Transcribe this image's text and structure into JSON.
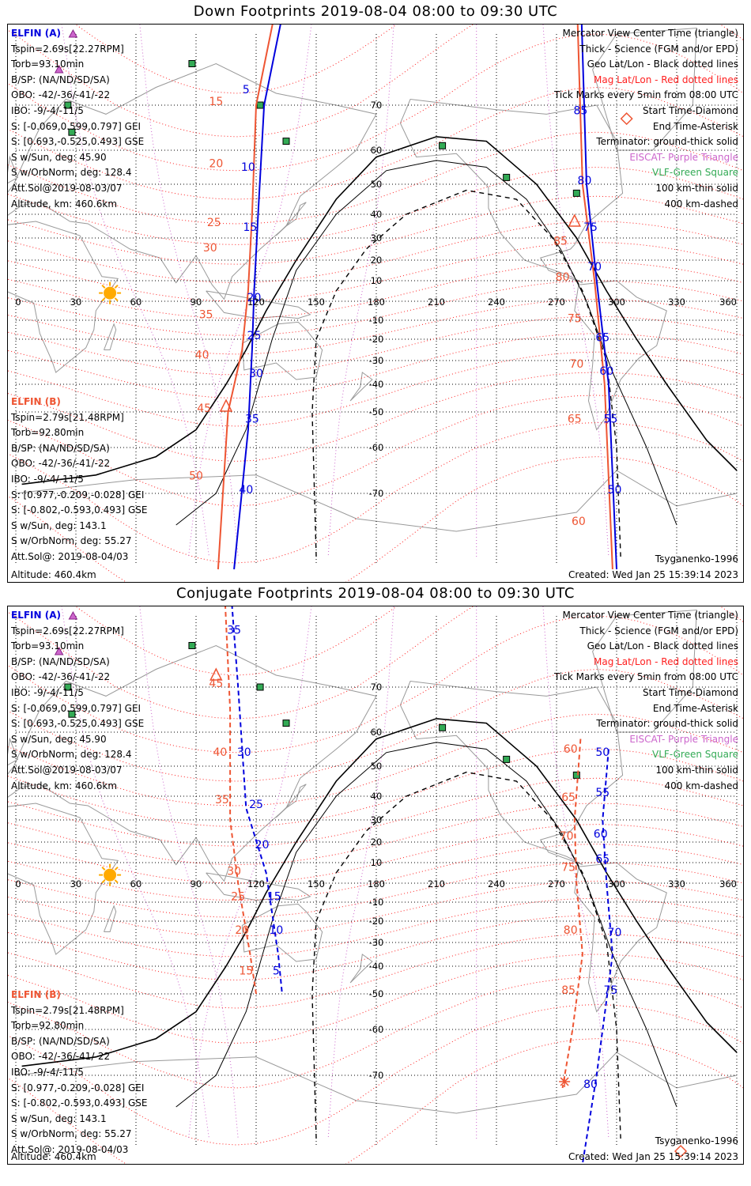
{
  "colors": {
    "elfin_a": "#0000dd",
    "elfin_b": "#ee5533",
    "mag_grid": "#ff2020",
    "geo_grid": "#000000",
    "eiscat": "#cc66cc",
    "vlf": "#33aa55",
    "sun": "#ffaa00",
    "coast": "#999999"
  },
  "panels": [
    {
      "title": "Down Footprints 2019-08-04 08:00 to 09:30 UTC",
      "elfin_a": {
        "header": "ELFIN (A)",
        "lines": [
          "Tspin=2.69s[22.27RPM]",
          "Torb=93.10min",
          "B/SP: (NA/ND/SD/SA)",
          "OBO: -42/-36/-41/-22",
          "IBO: -9/-4/-11/5",
          "S: [-0.069,0.599,0.797] GEI",
          "S: [0.693,-0.525,0.493] GSE",
          "S w/Sun, deg: 45.90",
          "S w/OrbNorm, deg: 128.4",
          "Att.Sol@2019-08-03/07",
          "Altitude, km: 460.6km"
        ]
      },
      "elfin_b": {
        "header": "ELFIN (B)",
        "lines": [
          "Tspin=2.79s[21.48RPM]",
          "Torb=92.80min",
          "B/SP: (NA/ND/SD/SA)",
          "OBO: -42/-36/-41/-22",
          "IBO: -9/-4/-11/5",
          "S: [0.977,-0.209,-0.028] GEI",
          "S: [-0.802,-0.593,0.493] GSE",
          "S w/Sun, deg: 143.1",
          "S w/OrbNorm, deg: 55.27",
          "Att.Sol@: 2019-08-04/03"
        ],
        "altitude": "Altitude: 460.4km"
      },
      "legend": [
        {
          "text": "Mercator View Center Time (triangle)",
          "color": "#000000"
        },
        {
          "text": "Thick - Science (FGM and/or EPD)",
          "color": "#000000"
        },
        {
          "text": "Geo Lat/Lon - Black dotted lines",
          "color": "#000000"
        },
        {
          "text": "Mag Lat/Lon - Red dotted lines",
          "color": "#ff2020"
        },
        {
          "text": "Tick Marks every 5min from 08:00 UTC",
          "color": "#000000"
        },
        {
          "text": "Start Time-Diamond",
          "color": "#000000"
        },
        {
          "text": "End Time-Asterisk",
          "color": "#000000"
        },
        {
          "text": "Terminator: ground-thick solid",
          "color": "#000000"
        },
        {
          "text": "EISCAT- Purple Triangle",
          "color": "#cc66cc"
        },
        {
          "text": "VLF-Green Square",
          "color": "#33aa55"
        },
        {
          "text": "100 km-thin solid",
          "color": "#000000"
        },
        {
          "text": "400 km-dashed",
          "color": "#000000"
        }
      ],
      "model": "Tsyganenko-1996",
      "created": "Created: Wed Jan 25 15:39:14 2023",
      "ticks_a": [
        {
          "t": "5",
          "lon": 115,
          "lat": 72
        },
        {
          "t": "10",
          "lon": 116,
          "lat": 54
        },
        {
          "t": "15",
          "lon": 117,
          "lat": 33
        },
        {
          "t": "20",
          "lon": 119,
          "lat": 0
        },
        {
          "t": "25",
          "lon": 119,
          "lat": -20
        },
        {
          "t": "30",
          "lon": 120,
          "lat": -37
        },
        {
          "t": "35",
          "lon": 118,
          "lat": -53
        },
        {
          "t": "40",
          "lon": 115,
          "lat": -70
        },
        {
          "t": "85",
          "lon": 282,
          "lat": 68
        },
        {
          "t": "80",
          "lon": 284,
          "lat": 50
        },
        {
          "t": "75",
          "lon": 287,
          "lat": 33
        },
        {
          "t": "70",
          "lon": 289,
          "lat": 15
        },
        {
          "t": "65",
          "lon": 293,
          "lat": -21
        },
        {
          "t": "60",
          "lon": 295,
          "lat": -36
        },
        {
          "t": "55",
          "lon": 297,
          "lat": -53
        },
        {
          "t": "50",
          "lon": 299,
          "lat": -70
        }
      ],
      "ticks_b": [
        {
          "t": "15",
          "lon": 100,
          "lat": 70
        },
        {
          "t": "20",
          "lon": 100,
          "lat": 55
        },
        {
          "t": "25",
          "lon": 99,
          "lat": 35
        },
        {
          "t": "30",
          "lon": 97,
          "lat": 24
        },
        {
          "t": "35",
          "lon": 95,
          "lat": -9
        },
        {
          "t": "40",
          "lon": 93,
          "lat": -29
        },
        {
          "t": "45",
          "lon": 94,
          "lat": -50
        },
        {
          "t": "50",
          "lon": 90,
          "lat": -67
        },
        {
          "t": "85",
          "lon": 272,
          "lat": 27
        },
        {
          "t": "80",
          "lon": 273,
          "lat": 10
        },
        {
          "t": "75",
          "lon": 279,
          "lat": -11
        },
        {
          "t": "70",
          "lon": 280,
          "lat": -33
        },
        {
          "t": "65",
          "lon": 279,
          "lat": -53
        },
        {
          "t": "60",
          "lon": 281,
          "lat": -75
        }
      ]
    },
    {
      "title": "Conjugate Footprints 2019-08-04 08:00 to 09:30 UTC",
      "elfin_a": {
        "header": "ELFIN (A)",
        "lines": [
          "Tspin=2.69s[22.27RPM]",
          "Torb=93.10min",
          "B/SP: (NA/ND/SD/SA)",
          "OBO: -42/-36/-41/-22",
          "IBO: -9/-4/-11/5",
          "S: [-0.069,0.599,0.797] GEI",
          "S: [0.693,-0.525,0.493] GSE",
          "S w/Sun, deg: 45.90",
          "S w/OrbNorm, deg: 128.4",
          "Att.Sol@2019-08-03/07",
          "Altitude, km: 460.6km"
        ]
      },
      "elfin_b": {
        "header": "ELFIN (B)",
        "lines": [
          "Tspin=2.79s[21.48RPM]",
          "Torb=92.80min",
          "B/SP: (NA/ND/SD/SA)",
          "OBO: -42/-36/-41/-22",
          "IBO: -9/-4/-11/5",
          "S: [0.977,-0.209,-0.028] GEI",
          "S: [-0.802,-0.593,0.493] GSE",
          "S w/Sun, deg: 143.1",
          "S w/OrbNorm, deg: 55.27",
          "Att.Sol@: 2019-08-04/03"
        ],
        "altitude": "Altitude: 460.4km"
      },
      "legend": [
        {
          "text": "Mercator View Center Time (triangle)",
          "color": "#000000"
        },
        {
          "text": "Thick - Science (FGM and/or EPD)",
          "color": "#000000"
        },
        {
          "text": "Geo Lat/Lon - Black dotted lines",
          "color": "#000000"
        },
        {
          "text": "Mag Lat/Lon - Red dotted lines",
          "color": "#ff2020"
        },
        {
          "text": "Tick Marks every 5min from 08:00 UTC",
          "color": "#000000"
        },
        {
          "text": "Start Time-Diamond",
          "color": "#000000"
        },
        {
          "text": "End Time-Asterisk",
          "color": "#000000"
        },
        {
          "text": "Terminator: ground-thick solid",
          "color": "#000000"
        },
        {
          "text": "EISCAT- Purple Triangle",
          "color": "#cc66cc"
        },
        {
          "text": "VLF-Green Square",
          "color": "#33aa55"
        },
        {
          "text": "100 km-thin solid",
          "color": "#000000"
        },
        {
          "text": "400 km-dashed",
          "color": "#000000"
        }
      ],
      "model": "Tsyganenko-1996",
      "created": "Created: Wed Jan 25 15:39:14 2023",
      "ticks_a": [
        {
          "t": "35",
          "lon": 109,
          "lat": 79
        },
        {
          "t": "30",
          "lon": 114,
          "lat": 53
        },
        {
          "t": "25",
          "lon": 120,
          "lat": 35
        },
        {
          "t": "20",
          "lon": 123,
          "lat": 17
        },
        {
          "t": "15",
          "lon": 129,
          "lat": -9
        },
        {
          "t": "10",
          "lon": 130,
          "lat": -26
        },
        {
          "t": "5",
          "lon": 130,
          "lat": -43
        },
        {
          "t": "50",
          "lon": 293,
          "lat": 53
        },
        {
          "t": "55",
          "lon": 293,
          "lat": 40
        },
        {
          "t": "60",
          "lon": 292,
          "lat": 22
        },
        {
          "t": "65",
          "lon": 293,
          "lat": 10
        },
        {
          "t": "70",
          "lon": 299,
          "lat": -27
        },
        {
          "t": "75",
          "lon": 297,
          "lat": -50
        },
        {
          "t": "80",
          "lon": 287,
          "lat": -72
        }
      ],
      "ticks_b": [
        {
          "t": "45",
          "lon": 100,
          "lat": 70
        },
        {
          "t": "40",
          "lon": 102,
          "lat": 53
        },
        {
          "t": "35",
          "lon": 103,
          "lat": 37
        },
        {
          "t": "30",
          "lon": 109,
          "lat": 4
        },
        {
          "t": "25",
          "lon": 111,
          "lat": -9
        },
        {
          "t": "20",
          "lon": 113,
          "lat": -26
        },
        {
          "t": "15",
          "lon": 115,
          "lat": -43
        },
        {
          "t": "60",
          "lon": 277,
          "lat": 54
        },
        {
          "t": "65",
          "lon": 276,
          "lat": 38
        },
        {
          "t": "70",
          "lon": 275,
          "lat": 21
        },
        {
          "t": "75",
          "lon": 276,
          "lat": 6
        },
        {
          "t": "80",
          "lon": 277,
          "lat": -26
        },
        {
          "t": "85",
          "lon": 276,
          "lat": -50
        }
      ]
    }
  ],
  "map": {
    "lon_labels": [
      "0",
      "30",
      "60",
      "90",
      "120",
      "150",
      "180",
      "210",
      "240",
      "270",
      "300",
      "330",
      "360"
    ],
    "lat_labels": [
      "70",
      "60",
      "50",
      "40",
      "30",
      "20",
      "10",
      "-10",
      "-20",
      "-30",
      "-40",
      "-50",
      "-60",
      "-70"
    ]
  }
}
